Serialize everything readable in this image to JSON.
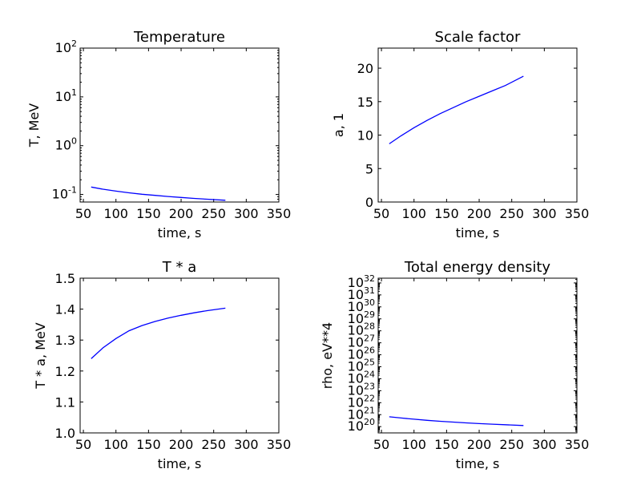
{
  "chart_data": [
    {
      "type": "line",
      "title": "Temperature",
      "xlabel": "time, s",
      "ylabel": "T, MeV",
      "xlim": [
        45,
        350
      ],
      "ylim": [
        0.07,
        100
      ],
      "yscale": "log",
      "xticks": [
        50,
        100,
        150,
        200,
        250,
        300,
        350
      ],
      "yticks": [
        {
          "base": "10",
          "exp": "-1",
          "value": 0.1
        },
        {
          "base": "10",
          "exp": "0",
          "value": 1
        },
        {
          "base": "10",
          "exp": "1",
          "value": 10
        },
        {
          "base": "10",
          "exp": "2",
          "value": 100
        }
      ],
      "series": [
        {
          "color": "#0000ff",
          "x": [
            62,
            80,
            100,
            120,
            140,
            160,
            180,
            200,
            220,
            240,
            268
          ],
          "y": [
            0.142,
            0.128,
            0.117,
            0.108,
            0.101,
            0.096,
            0.091,
            0.087,
            0.083,
            0.08,
            0.076
          ]
        }
      ]
    },
    {
      "type": "line",
      "title": "Scale factor",
      "xlabel": "time, s",
      "ylabel": "a, 1",
      "xlim": [
        45,
        350
      ],
      "ylim": [
        0,
        23
      ],
      "yscale": "linear",
      "xticks": [
        50,
        100,
        150,
        200,
        250,
        300,
        350
      ],
      "yticks": [
        {
          "label": "0",
          "value": 0
        },
        {
          "label": "5",
          "value": 5
        },
        {
          "label": "10",
          "value": 10
        },
        {
          "label": "15",
          "value": 15
        },
        {
          "label": "20",
          "value": 20
        }
      ],
      "series": [
        {
          "color": "#0000ff",
          "x": [
            62,
            80,
            100,
            120,
            140,
            160,
            180,
            200,
            220,
            240,
            268
          ],
          "y": [
            8.7,
            9.9,
            11.1,
            12.2,
            13.2,
            14.1,
            15.0,
            15.8,
            16.6,
            17.4,
            18.8
          ]
        }
      ]
    },
    {
      "type": "line",
      "title": "T * a",
      "xlabel": "time, s",
      "ylabel": "T * a, MeV",
      "xlim": [
        45,
        350
      ],
      "ylim": [
        1.0,
        1.5
      ],
      "yscale": "linear",
      "xticks": [
        50,
        100,
        150,
        200,
        250,
        300,
        350
      ],
      "yticks": [
        {
          "label": "1.0",
          "value": 1.0
        },
        {
          "label": "1.1",
          "value": 1.1
        },
        {
          "label": "1.2",
          "value": 1.2
        },
        {
          "label": "1.3",
          "value": 1.3
        },
        {
          "label": "1.4",
          "value": 1.4
        },
        {
          "label": "1.5",
          "value": 1.5
        }
      ],
      "series": [
        {
          "color": "#0000ff",
          "x": [
            62,
            80,
            100,
            120,
            140,
            160,
            180,
            200,
            220,
            240,
            268
          ],
          "y": [
            1.24,
            1.275,
            1.305,
            1.33,
            1.347,
            1.36,
            1.371,
            1.38,
            1.388,
            1.395,
            1.403
          ]
        }
      ]
    },
    {
      "type": "line",
      "title": "Total energy density",
      "xlabel": "time, s",
      "ylabel": "rho, eV**4",
      "xlim": [
        45,
        350
      ],
      "ylim": [
        3e+19,
        2.5e+32
      ],
      "yscale": "log",
      "xticks": [
        50,
        100,
        150,
        200,
        250,
        300,
        350
      ],
      "yticks": [
        {
          "base": "10",
          "exp": "20",
          "value": 1e+20
        },
        {
          "base": "10",
          "exp": "21",
          "value": 1e+21
        },
        {
          "base": "10",
          "exp": "22",
          "value": 1e+22
        },
        {
          "base": "10",
          "exp": "23",
          "value": 1e+23
        },
        {
          "base": "10",
          "exp": "24",
          "value": 1e+24
        },
        {
          "base": "10",
          "exp": "25",
          "value": 1e+25
        },
        {
          "base": "10",
          "exp": "26",
          "value": 1e+26
        },
        {
          "base": "10",
          "exp": "27",
          "value": 1e+27
        },
        {
          "base": "10",
          "exp": "28",
          "value": 1e+28
        },
        {
          "base": "10",
          "exp": "29",
          "value": 1e+29
        },
        {
          "base": "10",
          "exp": "30",
          "value": 1e+30
        },
        {
          "base": "10",
          "exp": "31",
          "value": 1e+31
        },
        {
          "base": "10",
          "exp": "32",
          "value": 1e+32
        }
      ],
      "series": [
        {
          "color": "#0000ff",
          "x": [
            62,
            80,
            100,
            120,
            140,
            160,
            180,
            200,
            220,
            240,
            268
          ],
          "y": [
            6.6e+20,
            5.3e+20,
            4.2e+20,
            3.4e+20,
            2.8e+20,
            2.4e+20,
            2.05e+20,
            1.8e+20,
            1.6e+20,
            1.45e+20,
            1.24e+20
          ]
        }
      ]
    }
  ]
}
